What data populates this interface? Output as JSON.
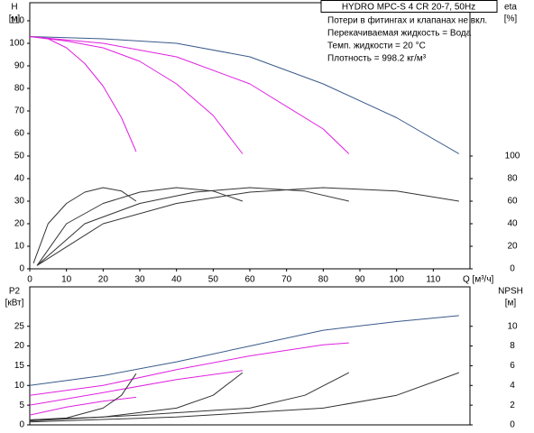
{
  "chart_data": [
    {
      "type": "line",
      "title": "HYDRO MPC-S 4 CR 20-7, 50Hz",
      "annotations": [
        "Потери в фитингах и клапанах не вкл.",
        "Перекачиваемая жидкость = Вода",
        "Темп. жидкости = 20 °C",
        "Плотность = 998.2 кг/м³"
      ],
      "xlabel": "Q [м³/ч]",
      "ylabel": "H",
      "yunit": "[м]",
      "y2label": "eta",
      "y2unit": "[%]",
      "xlim": [
        0,
        120
      ],
      "xticks": [
        0,
        10,
        20,
        30,
        40,
        50,
        60,
        70,
        80,
        90,
        100,
        110
      ],
      "ylim": [
        0,
        118
      ],
      "yticks": [
        0,
        10,
        20,
        30,
        40,
        50,
        60,
        70,
        80,
        90,
        100,
        110
      ],
      "y2lim": [
        0,
        236
      ],
      "y2ticks": [
        0,
        20,
        40,
        60,
        80,
        100
      ],
      "series": [
        {
          "color": "#3a5a8a",
          "x": [
            0,
            20,
            40,
            60,
            80,
            100,
            117
          ],
          "values": [
            103,
            102,
            100,
            94,
            82,
            67,
            51
          ]
        },
        {
          "color": "#e020e0",
          "x": [
            0,
            20,
            40,
            60,
            80,
            87
          ],
          "values": [
            103,
            100,
            94,
            82,
            62,
            51
          ]
        },
        {
          "color": "#e020e0",
          "x": [
            0,
            10,
            20,
            30,
            40,
            50,
            58
          ],
          "values": [
            103,
            101,
            98,
            92,
            82,
            68,
            51
          ]
        },
        {
          "color": "#e020e0",
          "x": [
            0,
            5,
            10,
            15,
            20,
            25,
            29
          ],
          "values": [
            103,
            102,
            98,
            91,
            81,
            67,
            52
          ]
        },
        {
          "color": "#333333",
          "axis": "y2",
          "x": [
            1,
            5,
            10,
            15,
            20,
            25,
            29
          ],
          "values": [
            5,
            40,
            58,
            68,
            72,
            69,
            60
          ]
        },
        {
          "color": "#333333",
          "axis": "y2",
          "x": [
            2,
            10,
            20,
            30,
            40,
            50,
            58
          ],
          "values": [
            3,
            40,
            58,
            68,
            72,
            69,
            60
          ]
        },
        {
          "color": "#333333",
          "axis": "y2",
          "x": [
            2,
            15,
            30,
            45,
            60,
            75,
            87
          ],
          "values": [
            3,
            40,
            58,
            68,
            72,
            69,
            60
          ]
        },
        {
          "color": "#333333",
          "axis": "y2",
          "x": [
            2,
            20,
            40,
            60,
            80,
            100,
            117
          ],
          "values": [
            3,
            40,
            58,
            68,
            72,
            69,
            60
          ]
        }
      ]
    },
    {
      "type": "line",
      "ylabel": "P2",
      "yunit": "[кВт]",
      "y2label": "NPSH",
      "y2unit": "[м]",
      "xlim": [
        0,
        120
      ],
      "ylim": [
        0,
        35
      ],
      "yticks": [
        0,
        5,
        10,
        15,
        20,
        25
      ],
      "y2lim": [
        0,
        14
      ],
      "y2ticks": [
        0,
        2,
        4,
        6,
        8,
        10
      ],
      "series": [
        {
          "color": "#3a5a8a",
          "x": [
            0,
            20,
            40,
            60,
            80,
            100,
            117
          ],
          "values": [
            10,
            12.5,
            16,
            20,
            24,
            26.2,
            27.7
          ]
        },
        {
          "color": "#e020e0",
          "x": [
            0,
            20,
            40,
            60,
            80,
            87
          ],
          "values": [
            7.5,
            10,
            14,
            17.5,
            20.3,
            20.8
          ]
        },
        {
          "color": "#e020e0",
          "x": [
            0,
            20,
            40,
            58
          ],
          "values": [
            5,
            8.2,
            11.5,
            13.8
          ]
        },
        {
          "color": "#e020e0",
          "x": [
            0,
            10,
            20,
            29
          ],
          "values": [
            2.5,
            4.5,
            6,
            7
          ]
        },
        {
          "color": "#333333",
          "axis": "y2",
          "x": [
            0,
            10,
            20,
            25,
            29
          ],
          "values": [
            0.5,
            0.7,
            1.7,
            3,
            5.2
          ]
        },
        {
          "color": "#333333",
          "axis": "y2",
          "x": [
            0,
            20,
            40,
            50,
            58
          ],
          "values": [
            0.5,
            0.8,
            1.7,
            3,
            5.3
          ]
        },
        {
          "color": "#333333",
          "axis": "y2",
          "x": [
            0,
            30,
            60,
            75,
            87
          ],
          "values": [
            0.4,
            1,
            1.7,
            3,
            5.3
          ]
        },
        {
          "color": "#333333",
          "axis": "y2",
          "x": [
            0,
            40,
            80,
            100,
            117
          ],
          "values": [
            0.3,
            0.8,
            1.7,
            3,
            5.3
          ]
        }
      ]
    }
  ]
}
